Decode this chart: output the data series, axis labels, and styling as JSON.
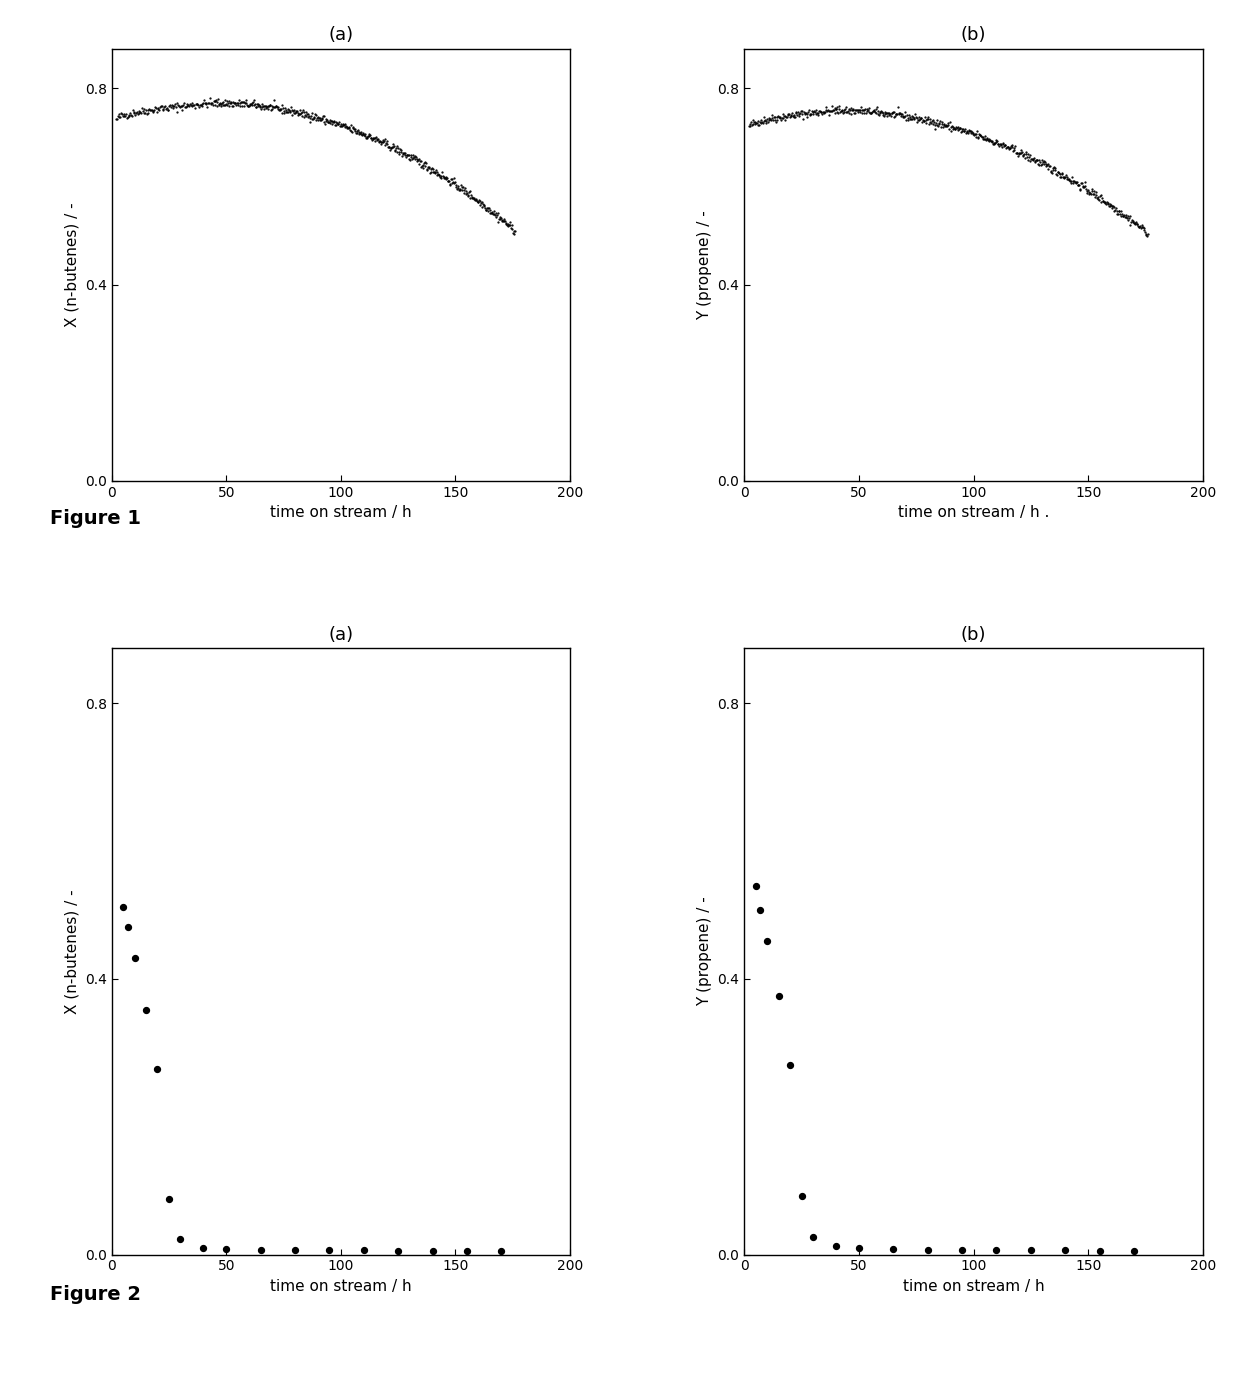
{
  "fig1_a": {
    "title": "(a)",
    "ylabel": "X (n-butenes) / -",
    "xlabel": "time on stream / h",
    "xlim": [
      0,
      200
    ],
    "ylim": [
      0.0,
      0.88
    ],
    "yticks": [
      0.0,
      0.4,
      0.8
    ],
    "xticks": [
      0,
      50,
      100,
      150,
      200
    ],
    "curve_start_x": 2,
    "curve_end_x": 176,
    "curve_start_y": 0.735,
    "curve_peak_y": 0.77,
    "curve_peak_x": 45,
    "curve_end_y": 0.51
  },
  "fig1_b": {
    "title": "(b)",
    "ylabel": "Y (propene) / -",
    "xlabel": "time on stream / h .",
    "xlim": [
      0,
      200
    ],
    "ylim": [
      0.0,
      0.88
    ],
    "yticks": [
      0.0,
      0.4,
      0.8
    ],
    "xticks": [
      0,
      50,
      100,
      150,
      200
    ],
    "curve_start_x": 2,
    "curve_end_x": 176,
    "curve_start_y": 0.72,
    "curve_peak_y": 0.755,
    "curve_peak_x": 40,
    "curve_end_y": 0.505
  },
  "fig2_a": {
    "title": "(a)",
    "ylabel": "X (n-butenes) / -",
    "xlabel": "time on stream / h",
    "xlim": [
      0,
      200
    ],
    "ylim": [
      0.0,
      0.88
    ],
    "yticks": [
      0.0,
      0.4,
      0.8
    ],
    "xticks": [
      0,
      50,
      100,
      150,
      200
    ],
    "scatter_x": [
      5,
      7,
      10,
      15,
      20,
      25,
      30,
      40,
      50,
      65,
      80,
      95,
      110,
      125,
      140,
      155,
      170
    ],
    "scatter_y": [
      0.505,
      0.475,
      0.43,
      0.355,
      0.27,
      0.08,
      0.022,
      0.01,
      0.008,
      0.007,
      0.006,
      0.006,
      0.006,
      0.005,
      0.005,
      0.005,
      0.005
    ]
  },
  "fig2_b": {
    "title": "(b)",
    "ylabel": "Y (propene) / -",
    "xlabel": "time on stream / h",
    "xlim": [
      0,
      200
    ],
    "ylim": [
      0.0,
      0.88
    ],
    "yticks": [
      0.0,
      0.4,
      0.8
    ],
    "xticks": [
      0,
      50,
      100,
      150,
      200
    ],
    "scatter_x": [
      5,
      7,
      10,
      15,
      20,
      25,
      30,
      40,
      50,
      65,
      80,
      95,
      110,
      125,
      140,
      155,
      170
    ],
    "scatter_y": [
      0.535,
      0.5,
      0.455,
      0.375,
      0.275,
      0.085,
      0.025,
      0.012,
      0.009,
      0.008,
      0.007,
      0.007,
      0.007,
      0.006,
      0.006,
      0.005,
      0.005
    ]
  },
  "figure1_label": "Figure 1",
  "figure2_label": "Figure 2",
  "background_color": "#ffffff",
  "data_color": "#000000",
  "fontsize_title": 13,
  "fontsize_label": 11,
  "fontsize_tick": 10,
  "fontsize_fig_label": 14
}
